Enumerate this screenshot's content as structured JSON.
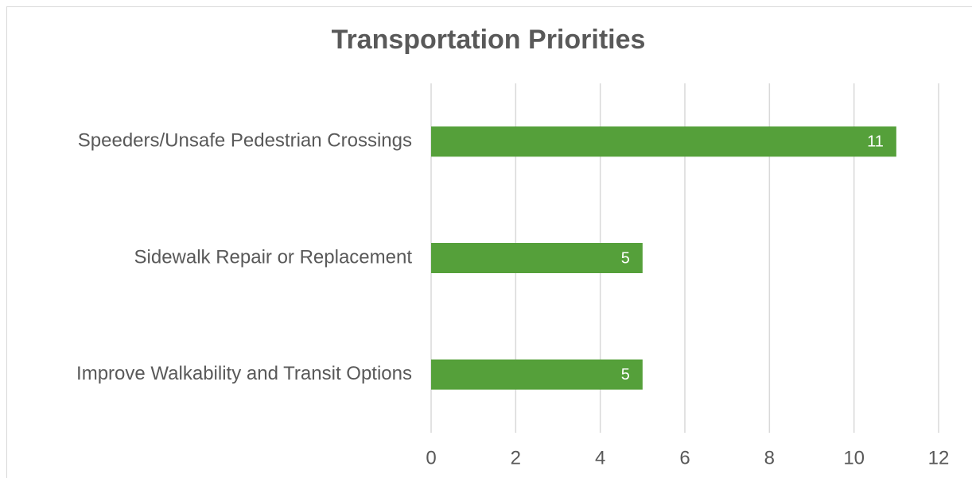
{
  "chart_data": {
    "type": "bar",
    "orientation": "horizontal",
    "title": "Transportation Priorities",
    "categories": [
      "Speeders/Unsafe Pedestrian Crossings",
      "Sidewalk Repair or Replacement",
      "Improve Walkability and Transit Options"
    ],
    "values": [
      11,
      5,
      5
    ],
    "color": "#55a03a",
    "xlim": [
      0,
      12
    ],
    "xticks": [
      0,
      2,
      4,
      6,
      8,
      10,
      12
    ],
    "grid": true,
    "data_labels": true
  }
}
